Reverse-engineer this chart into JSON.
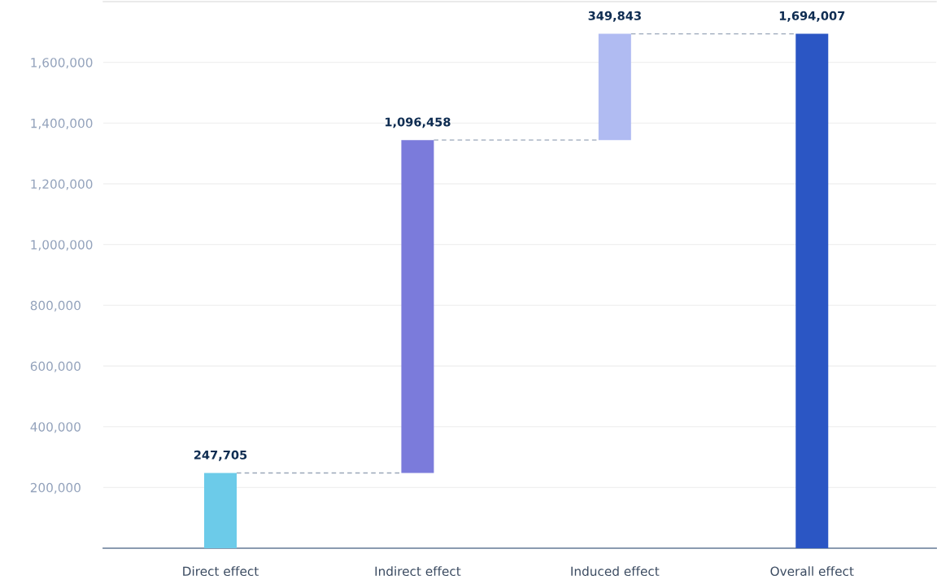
{
  "chart_data": {
    "type": "bar",
    "categories": [
      "Direct effect",
      "Indirect effect",
      "Induced effect",
      "Overall effect"
    ],
    "values": [
      247705,
      1096458,
      349843,
      1694007
    ],
    "base": [
      0,
      247705,
      1344163,
      0
    ],
    "colors": [
      "#6ccbe9",
      "#7b7bdb",
      "#b0bbf2",
      "#2b56c4"
    ],
    "value_labels": [
      "247,705",
      "1,096,458",
      "349,843",
      "1,694,007"
    ],
    "ylim": [
      0,
      1800000
    ],
    "yticks": [
      {
        "value": 200000,
        "label": "200,000"
      },
      {
        "value": 400000,
        "label": "400,000"
      },
      {
        "value": 600000,
        "label": "600,000"
      },
      {
        "value": 800000,
        "label": "800,000"
      },
      {
        "value": 1000000,
        "label": "1,000,000"
      },
      {
        "value": 1200000,
        "label": "1,200,000"
      },
      {
        "value": 1400000,
        "label": "1,400,000"
      },
      {
        "value": 1600000,
        "label": "1,600,000"
      }
    ],
    "grid": "y",
    "line_style": "dashed"
  }
}
